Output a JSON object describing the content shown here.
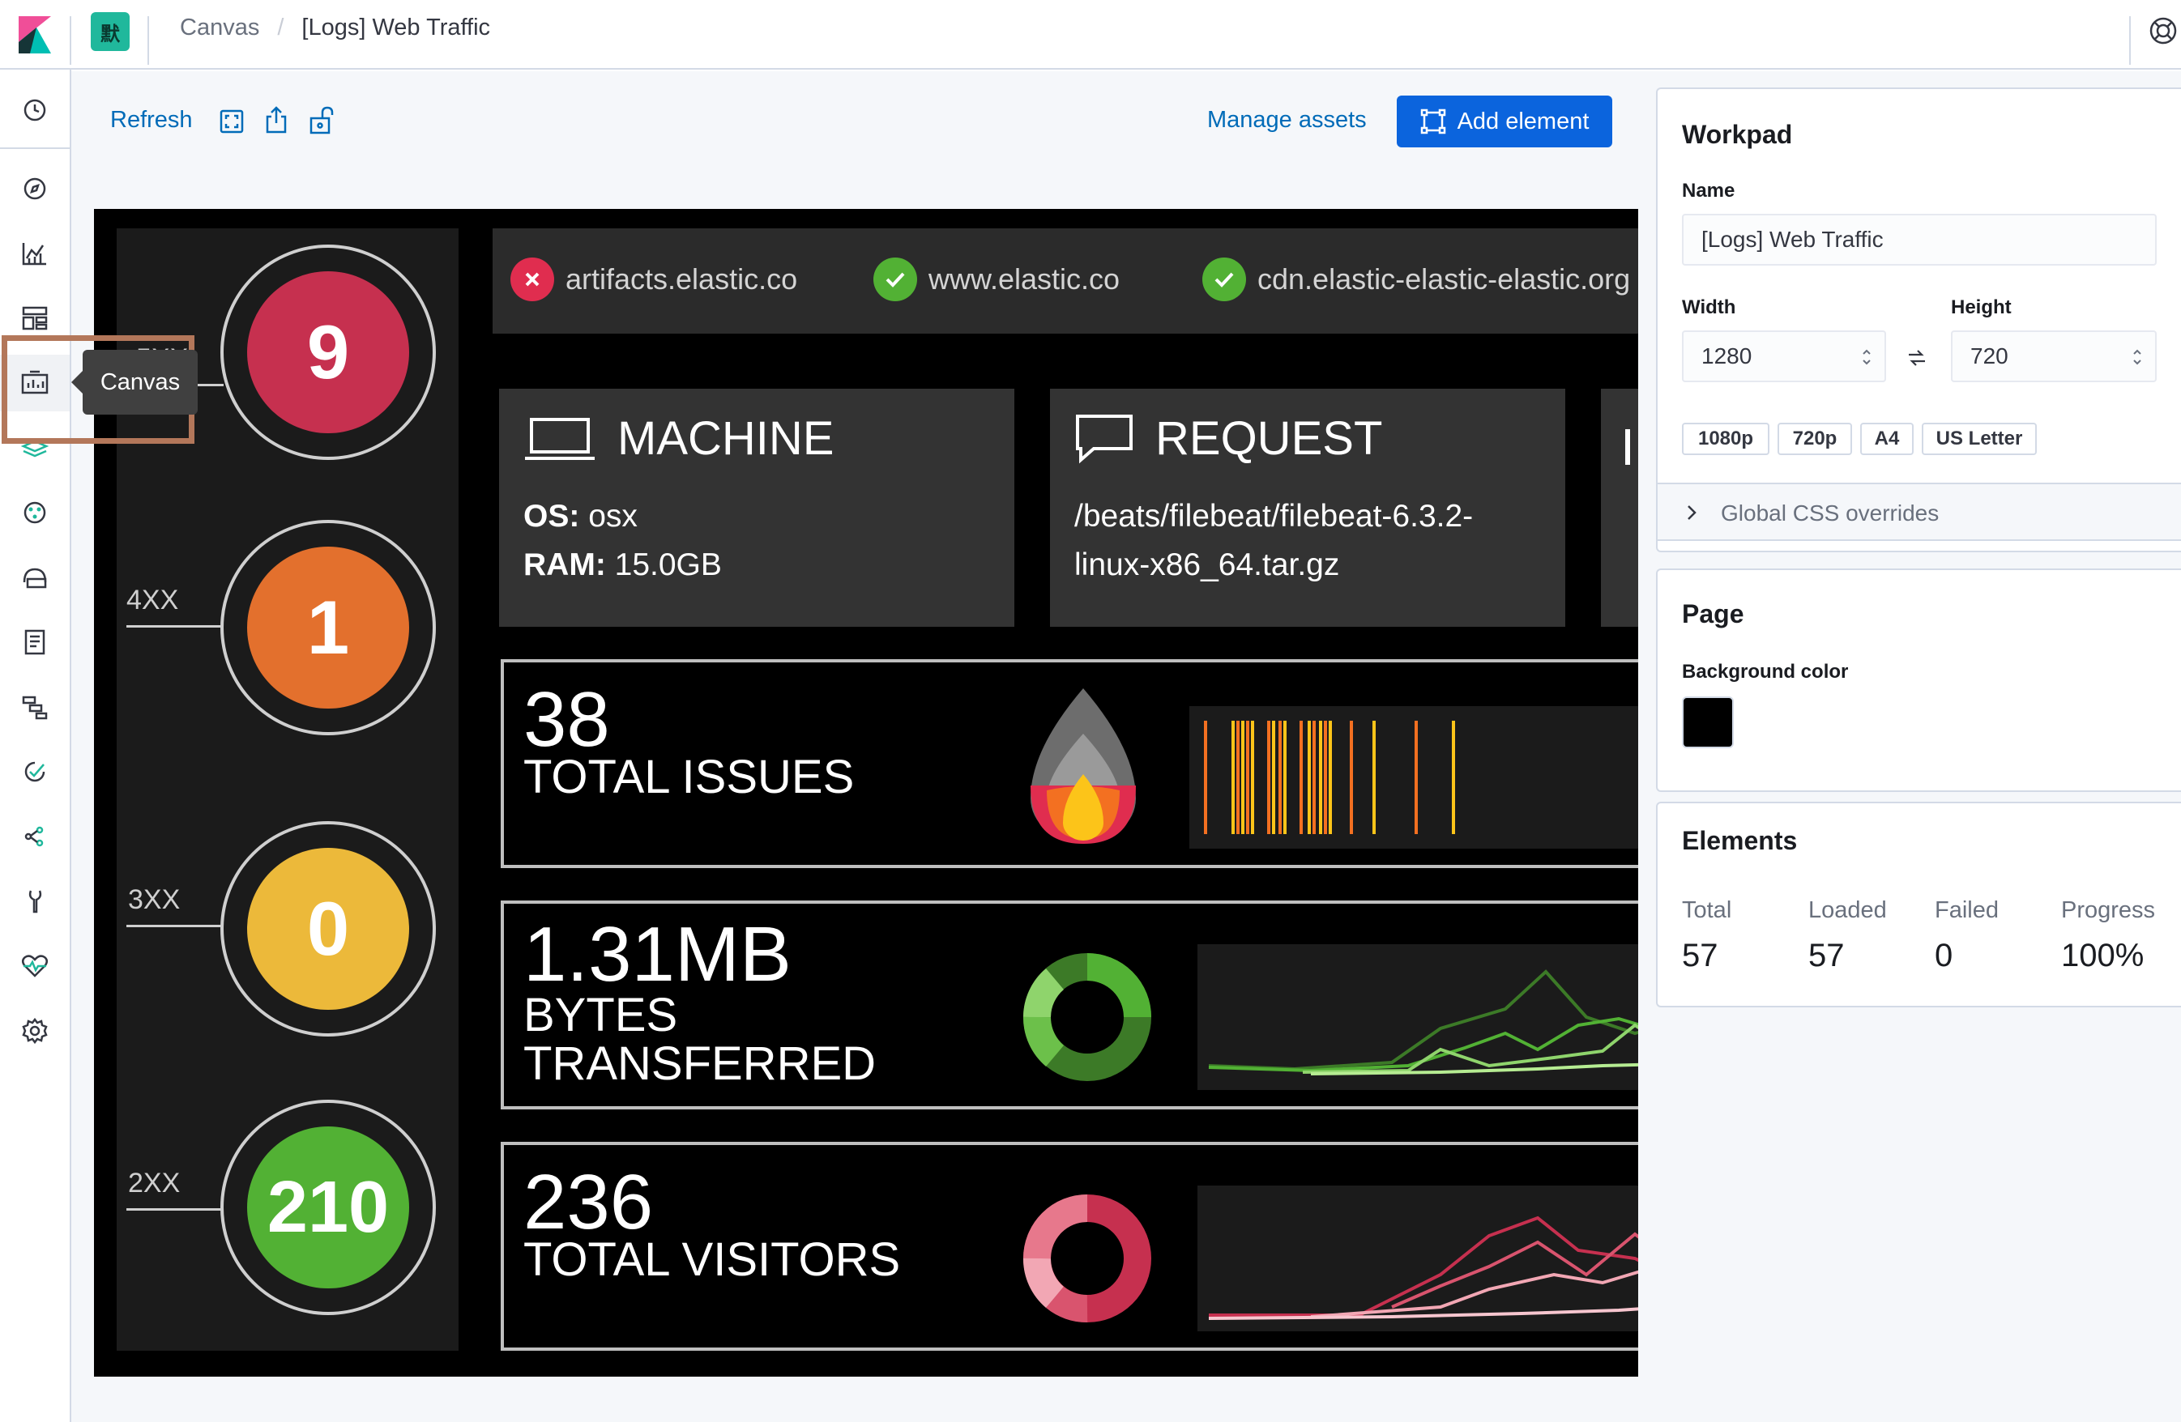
{
  "header": {
    "app_badge": "默",
    "breadcrumbs": [
      "Canvas",
      "[Logs] Web Traffic"
    ],
    "breadcrumb_separator": "/"
  },
  "sidenav": {
    "items": [
      "recently-viewed",
      "discover",
      "visualize",
      "dashboard",
      "canvas",
      "maps",
      "machine-learning",
      "infrastructure",
      "logs",
      "apm",
      "uptime",
      "graph",
      "dev-tools",
      "monitoring",
      "management"
    ],
    "active": "canvas",
    "tooltip": "Canvas"
  },
  "toolbar": {
    "refresh_label": "Refresh",
    "manage_assets_label": "Manage assets",
    "add_element_label": "Add element"
  },
  "workpad": {
    "status_codes": [
      {
        "label": "5XX",
        "value": "9",
        "color": "#c6304f"
      },
      {
        "label": "4XX",
        "value": "1",
        "color": "#e3702d"
      },
      {
        "label": "3XX",
        "value": "0",
        "color": "#ecb93a"
      },
      {
        "label": "2XX",
        "value": "210",
        "color": "#52b134"
      }
    ],
    "hosts": [
      {
        "name": "artifacts.elastic.co",
        "status": "down"
      },
      {
        "name": "www.elastic.co",
        "status": "up"
      },
      {
        "name": "cdn.elastic-elastic-elastic.org",
        "status": "up"
      }
    ],
    "machine": {
      "title": "MACHINE",
      "os_label": "OS:",
      "os_value": "osx",
      "ram_label": "RAM:",
      "ram_value": "15.0GB"
    },
    "request": {
      "title": "REQUEST",
      "line1": "/beats/filebeat/filebeat-6.3.2-",
      "line2": "linux-x86_64.tar.gz"
    },
    "metrics": [
      {
        "value": "38",
        "label": "TOTAL ISSUES"
      },
      {
        "value": "1.31MB",
        "label_line1": "BYTES",
        "label_line2": "TRANSFERRED"
      },
      {
        "value": "236",
        "label": "TOTAL VISITORS"
      }
    ]
  },
  "panel": {
    "workpad_title": "Workpad",
    "name_label": "Name",
    "name_value": "[Logs] Web Traffic",
    "width_label": "Width",
    "width_value": "1280",
    "height_label": "Height",
    "height_value": "720",
    "presets": [
      "1080p",
      "720p",
      "A4",
      "US Letter"
    ],
    "global_css_label": "Global CSS overrides",
    "page_title": "Page",
    "bg_color_label": "Background color",
    "bg_color": "#000000",
    "elements_title": "Elements",
    "stats": [
      {
        "label": "Total",
        "value": "57"
      },
      {
        "label": "Loaded",
        "value": "57"
      },
      {
        "label": "Failed",
        "value": "0"
      },
      {
        "label": "Progress",
        "value": "100%"
      }
    ]
  }
}
